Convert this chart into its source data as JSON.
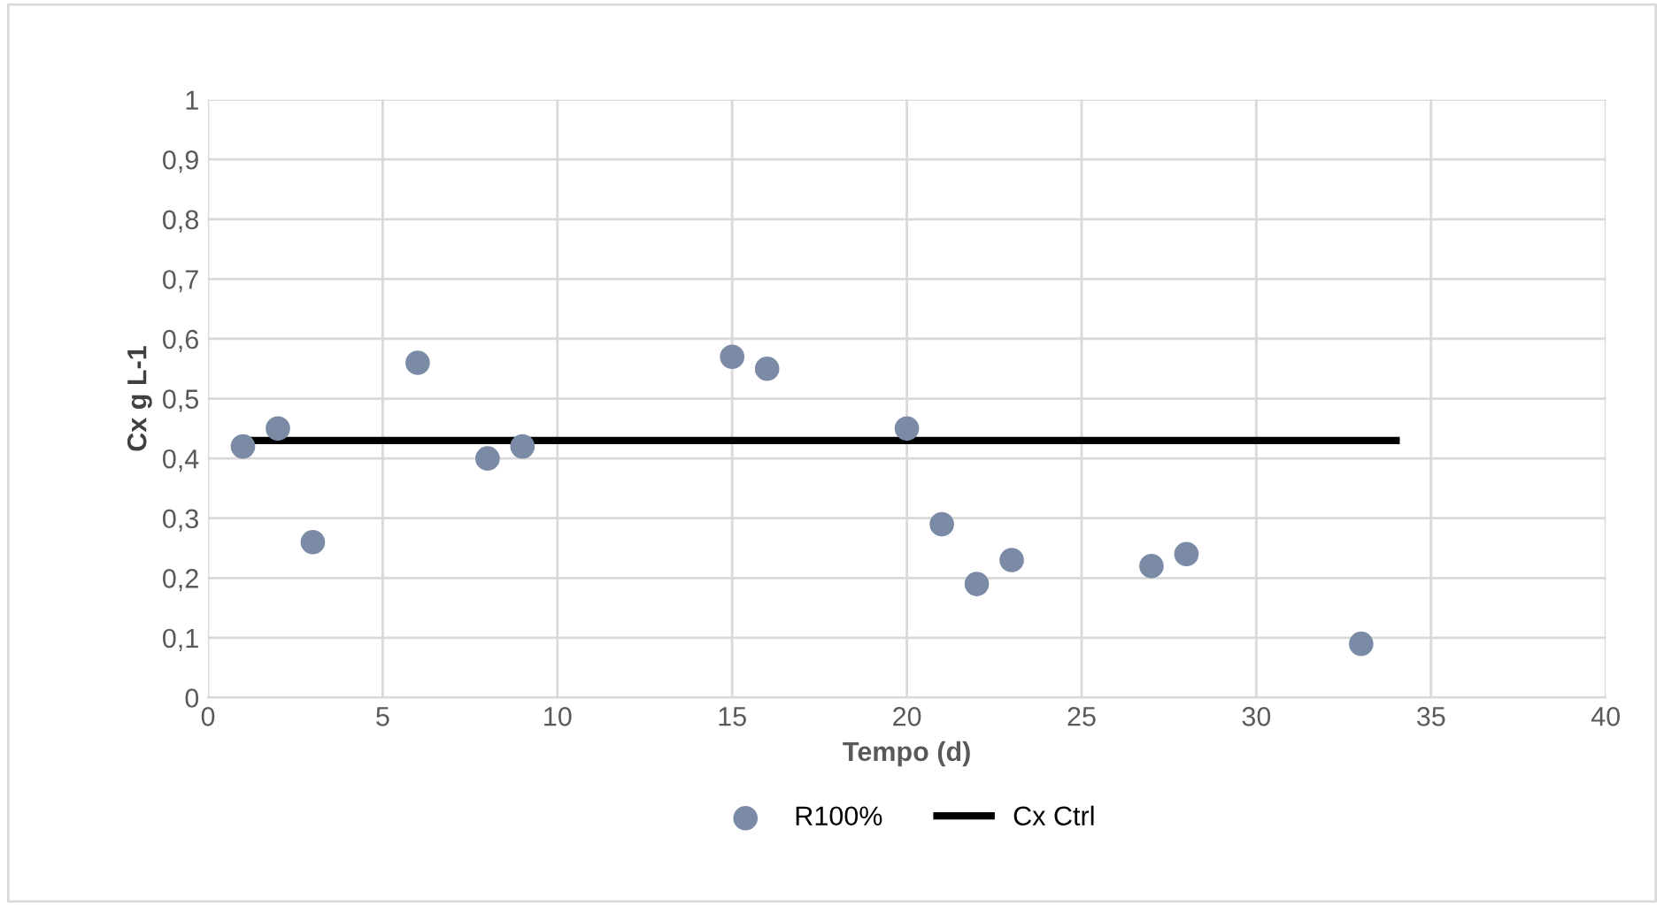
{
  "chart_data": {
    "type": "scatter",
    "xlabel": "Tempo (d)",
    "ylabel": "Cx g L-1",
    "xlim": [
      0,
      40
    ],
    "xticks": [
      0,
      5,
      10,
      15,
      20,
      25,
      30,
      35,
      40
    ],
    "ylim": [
      0,
      1
    ],
    "yticks": [
      {
        "value": 0,
        "label": "0"
      },
      {
        "value": 0.1,
        "label": "0,1"
      },
      {
        "value": 0.2,
        "label": "0,2"
      },
      {
        "value": 0.3,
        "label": "0,3"
      },
      {
        "value": 0.4,
        "label": "0,4"
      },
      {
        "value": 0.5,
        "label": "0,5"
      },
      {
        "value": 0.6,
        "label": "0,6"
      },
      {
        "value": 0.7,
        "label": "0,7"
      },
      {
        "value": 0.8,
        "label": "0,8"
      },
      {
        "value": 0.9,
        "label": "0,9"
      },
      {
        "value": 1,
        "label": "1"
      }
    ],
    "grid": true,
    "legend": "bottom",
    "series": [
      {
        "name": "R100%",
        "color": "#7b8ba6",
        "marker": "circle",
        "x": [
          1,
          2,
          3,
          6,
          8,
          9,
          15,
          16,
          20,
          21,
          22,
          23,
          27,
          28,
          33
        ],
        "values": [
          0.42,
          0.45,
          0.26,
          0.56,
          0.4,
          0.42,
          0.57,
          0.55,
          0.45,
          0.29,
          0.19,
          0.23,
          0.22,
          0.24,
          0.09
        ]
      },
      {
        "name": "Cx Ctrl",
        "type": "line",
        "color": "#000000",
        "marker": "none",
        "x": [
          1,
          34
        ],
        "values": [
          0.43,
          0.43
        ]
      }
    ]
  }
}
